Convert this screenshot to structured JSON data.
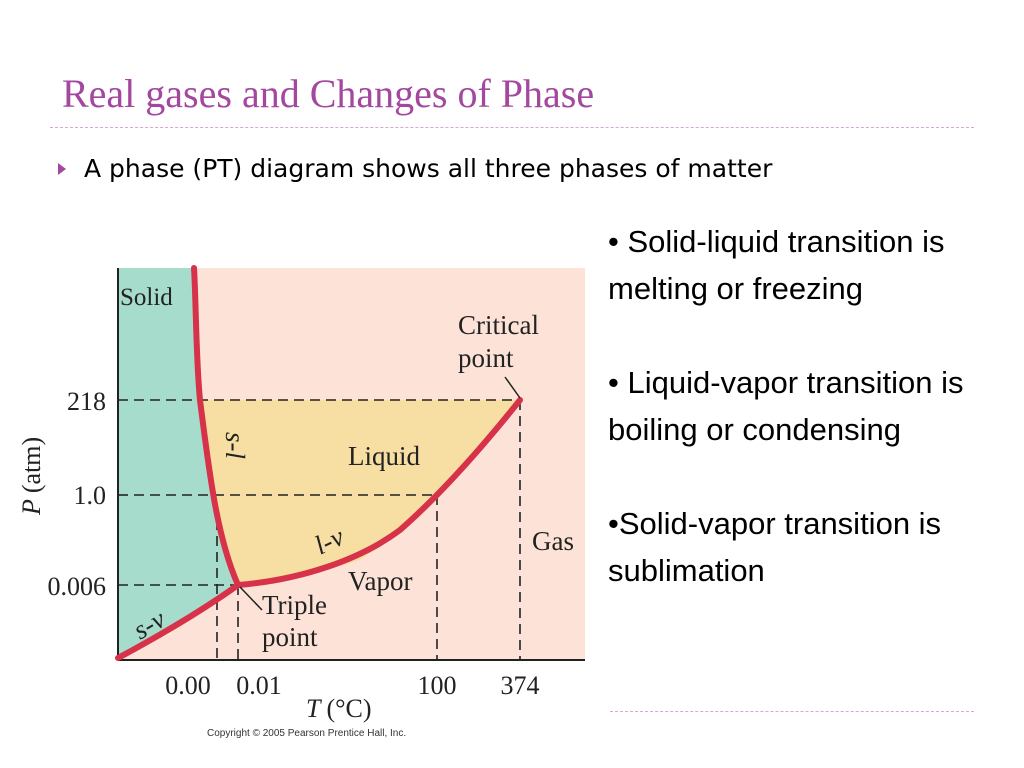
{
  "slide": {
    "title": "Real gases and Changes of Phase",
    "bullet": "A phase (PT) diagram shows all three phases of matter"
  },
  "notes": [
    "• Solid-liquid transition is melting or freezing",
    "• Liquid-vapor transition is boiling or condensing",
    "•Solid-vapor transition is sublimation"
  ],
  "diagram": {
    "y_axis_label_var": "P",
    "y_axis_label_unit": "(atm)",
    "x_axis_label_var": "T",
    "x_axis_label_unit": "(°C)",
    "y_ticks": [
      "218",
      "1.0",
      "0.006"
    ],
    "x_ticks": [
      "0.00",
      "0.01",
      "100",
      "374"
    ],
    "regions": {
      "solid": "Solid",
      "liquid": "Liquid",
      "vapor": "Vapor",
      "gas": "Gas"
    },
    "curves": {
      "solid_liquid": "s-l",
      "liquid_vapor": "l-v",
      "solid_vapor": "s-v"
    },
    "points": {
      "critical_line1": "Critical",
      "critical_line2": "point",
      "triple_line1": "Triple",
      "triple_line2": "point"
    },
    "colors": {
      "solid": "#a6dccb",
      "liquid": "#f7dfa3",
      "vapor": "#fde3d7",
      "curve": "#d6324a"
    },
    "copyright": "Copyright © 2005 Pearson Prentice Hall, Inc."
  }
}
